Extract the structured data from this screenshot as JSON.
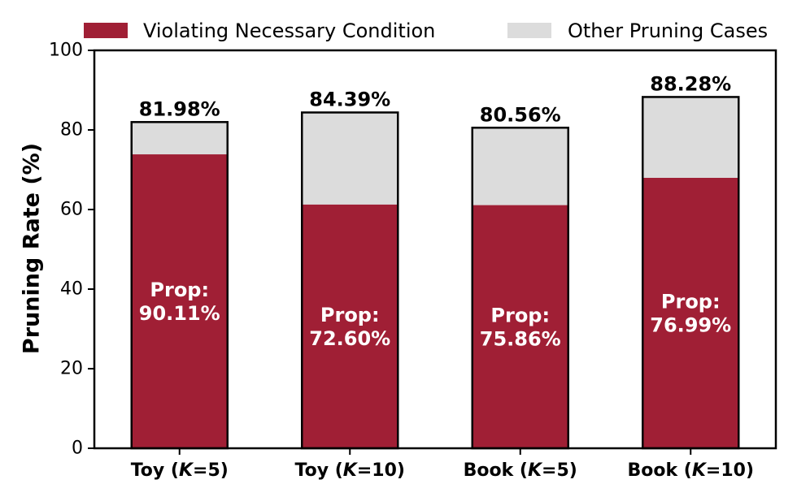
{
  "chart_data": {
    "type": "bar",
    "stacked": true,
    "categories": [
      {
        "prefix": "Toy (",
        "k": "K",
        "suffix": "=5)"
      },
      {
        "prefix": "Toy (",
        "k": "K",
        "suffix": "=10)"
      },
      {
        "prefix": "Book (",
        "k": "K",
        "suffix": "=5)"
      },
      {
        "prefix": "Book (",
        "k": "K",
        "suffix": "=10)"
      }
    ],
    "series": [
      {
        "name": "Violating Necessary Condition",
        "color": "#a01f35",
        "values": [
          73.87,
          61.27,
          61.11,
          67.96
        ]
      },
      {
        "name": "Other Pruning Cases",
        "color": "#dcdcdc",
        "values": [
          8.11,
          23.12,
          19.45,
          20.32
        ]
      }
    ],
    "totals": [
      "81.98%",
      "84.39%",
      "80.56%",
      "88.28%"
    ],
    "prop_prefix": "Prop:",
    "prop_labels": [
      "90.11%",
      "72.60%",
      "75.86%",
      "76.99%"
    ],
    "ylabel": "Pruning Rate (%)",
    "ylim": [
      0,
      100
    ],
    "yticks": [
      0,
      20,
      40,
      60,
      80,
      100
    ],
    "grid": false,
    "legend": "top"
  }
}
